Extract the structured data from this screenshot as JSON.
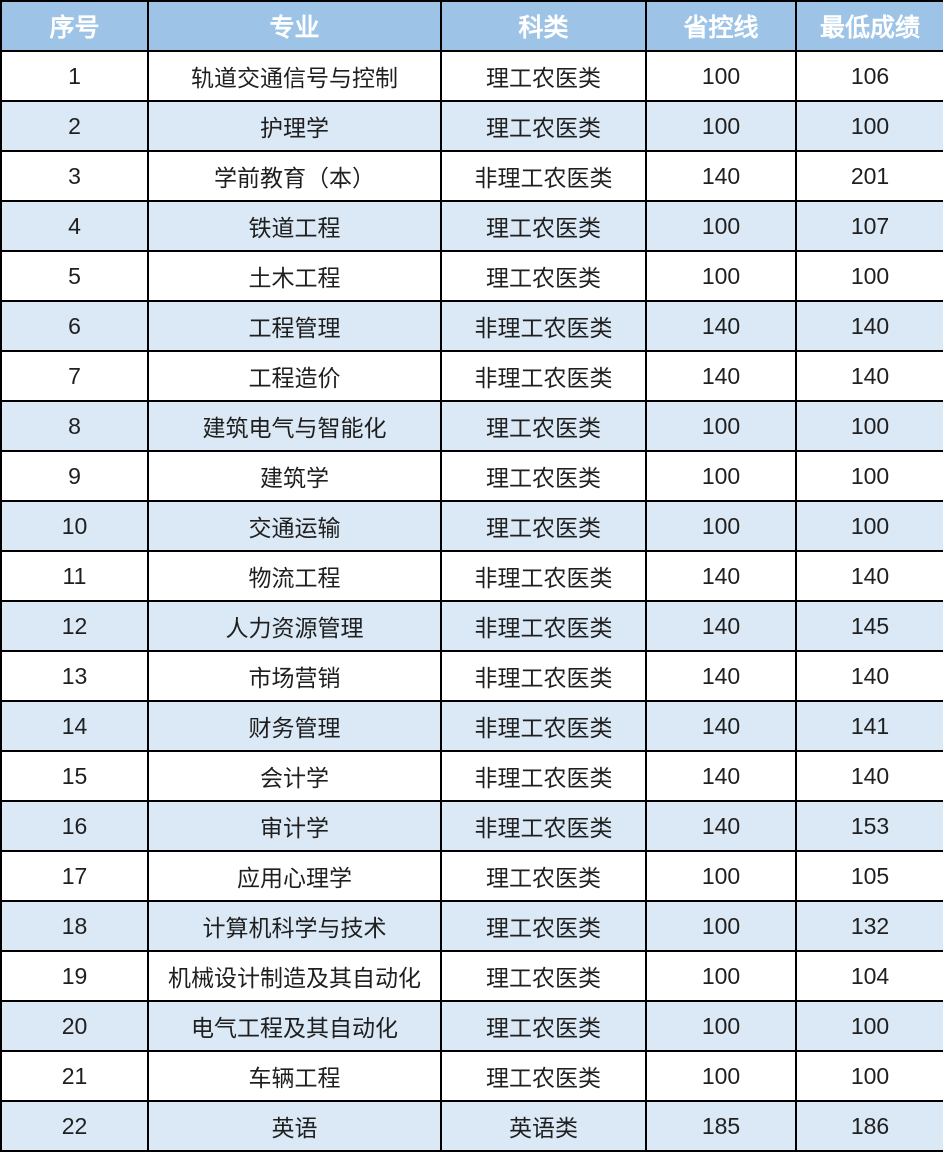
{
  "colors": {
    "header_bg": "#9DC3E6",
    "header_text": "#FFFFFF",
    "row_bg": "#FFFFFF",
    "row_alt_bg": "#DBE8F5",
    "border": "#000000",
    "text": "#1F1F1F"
  },
  "chart_data": {
    "type": "table",
    "columns": [
      "序号",
      "专业",
      "科类",
      "省控线",
      "最低成绩"
    ],
    "column_keys": [
      "no",
      "major",
      "category",
      "control-line",
      "min-score"
    ],
    "rows": [
      [
        "1",
        "轨道交通信号与控制",
        "理工农医类",
        "100",
        "106"
      ],
      [
        "2",
        "护理学",
        "理工农医类",
        "100",
        "100"
      ],
      [
        "3",
        "学前教育（本）",
        "非理工农医类",
        "140",
        "201"
      ],
      [
        "4",
        "铁道工程",
        "理工农医类",
        "100",
        "107"
      ],
      [
        "5",
        "土木工程",
        "理工农医类",
        "100",
        "100"
      ],
      [
        "6",
        "工程管理",
        "非理工农医类",
        "140",
        "140"
      ],
      [
        "7",
        "工程造价",
        "非理工农医类",
        "140",
        "140"
      ],
      [
        "8",
        "建筑电气与智能化",
        "理工农医类",
        "100",
        "100"
      ],
      [
        "9",
        "建筑学",
        "理工农医类",
        "100",
        "100"
      ],
      [
        "10",
        "交通运输",
        "理工农医类",
        "100",
        "100"
      ],
      [
        "11",
        "物流工程",
        "非理工农医类",
        "140",
        "140"
      ],
      [
        "12",
        "人力资源管理",
        "非理工农医类",
        "140",
        "145"
      ],
      [
        "13",
        "市场营销",
        "非理工农医类",
        "140",
        "140"
      ],
      [
        "14",
        "财务管理",
        "非理工农医类",
        "140",
        "141"
      ],
      [
        "15",
        "会计学",
        "非理工农医类",
        "140",
        "140"
      ],
      [
        "16",
        "审计学",
        "非理工农医类",
        "140",
        "153"
      ],
      [
        "17",
        "应用心理学",
        "理工农医类",
        "100",
        "105"
      ],
      [
        "18",
        "计算机科学与技术",
        "理工农医类",
        "100",
        "132"
      ],
      [
        "19",
        "机械设计制造及其自动化",
        "理工农医类",
        "100",
        "104"
      ],
      [
        "20",
        "电气工程及其自动化",
        "理工农医类",
        "100",
        "100"
      ],
      [
        "21",
        "车辆工程",
        "理工农医类",
        "100",
        "100"
      ],
      [
        "22",
        "英语",
        "英语类",
        "185",
        "186"
      ]
    ]
  }
}
